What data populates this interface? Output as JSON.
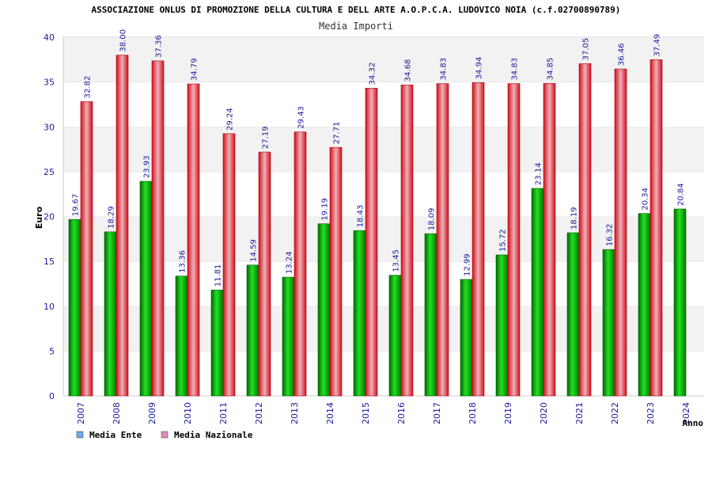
{
  "chart_data": {
    "type": "bar",
    "title": "ASSOCIAZIONE ONLUS DI PROMOZIONE DELLA CULTURA E DELL ARTE A.O.P.C.A. LUDOVICO NOIA (c.f.02700890789)",
    "subtitle": "Media Importi",
    "xlabel": "Anno",
    "ylabel": "Euro",
    "ylim": [
      0,
      40
    ],
    "yticks": [
      "0",
      "5",
      "10",
      "15",
      "20",
      "25",
      "30",
      "35",
      "40"
    ],
    "grid": "horizontal-bands",
    "legend_position": "bottom-left",
    "categories": [
      "2007",
      "2008",
      "2009",
      "2010",
      "2011",
      "2012",
      "2013",
      "2014",
      "2015",
      "2016",
      "2017",
      "2018",
      "2019",
      "2020",
      "2021",
      "2022",
      "2023",
      "2024"
    ],
    "series": [
      {
        "name": "Media Ente",
        "color": "#00a000",
        "legend_color": "#6aa8e8",
        "values": [
          19.67,
          18.29,
          23.93,
          13.36,
          11.81,
          14.59,
          13.24,
          19.19,
          18.43,
          13.45,
          18.09,
          12.99,
          15.72,
          23.14,
          18.19,
          16.32,
          20.34,
          20.84
        ],
        "labels": [
          "19.67",
          "18.29",
          "23.93",
          "13.36",
          "11.81",
          "14.59",
          "13.24",
          "19.19",
          "18.43",
          "13.45",
          "18.09",
          "12.99",
          "15.72",
          "23.14",
          "18.19",
          "16.32",
          "20.34",
          "20.84"
        ]
      },
      {
        "name": "Media Nazionale",
        "color": "#e8202a",
        "legend_color": "#e08ab8",
        "values": [
          32.82,
          38.0,
          37.36,
          34.79,
          29.24,
          27.19,
          29.43,
          27.71,
          34.32,
          34.68,
          34.83,
          34.94,
          34.83,
          34.85,
          37.05,
          36.46,
          37.49,
          null
        ],
        "labels": [
          "32.82",
          "38.00",
          "37.36",
          "34.79",
          "29.24",
          "27.19",
          "29.43",
          "27.71",
          "34.32",
          "34.68",
          "34.83",
          "34.94",
          "34.83",
          "34.85",
          "37.05",
          "36.46",
          "37.49",
          ""
        ]
      }
    ]
  }
}
